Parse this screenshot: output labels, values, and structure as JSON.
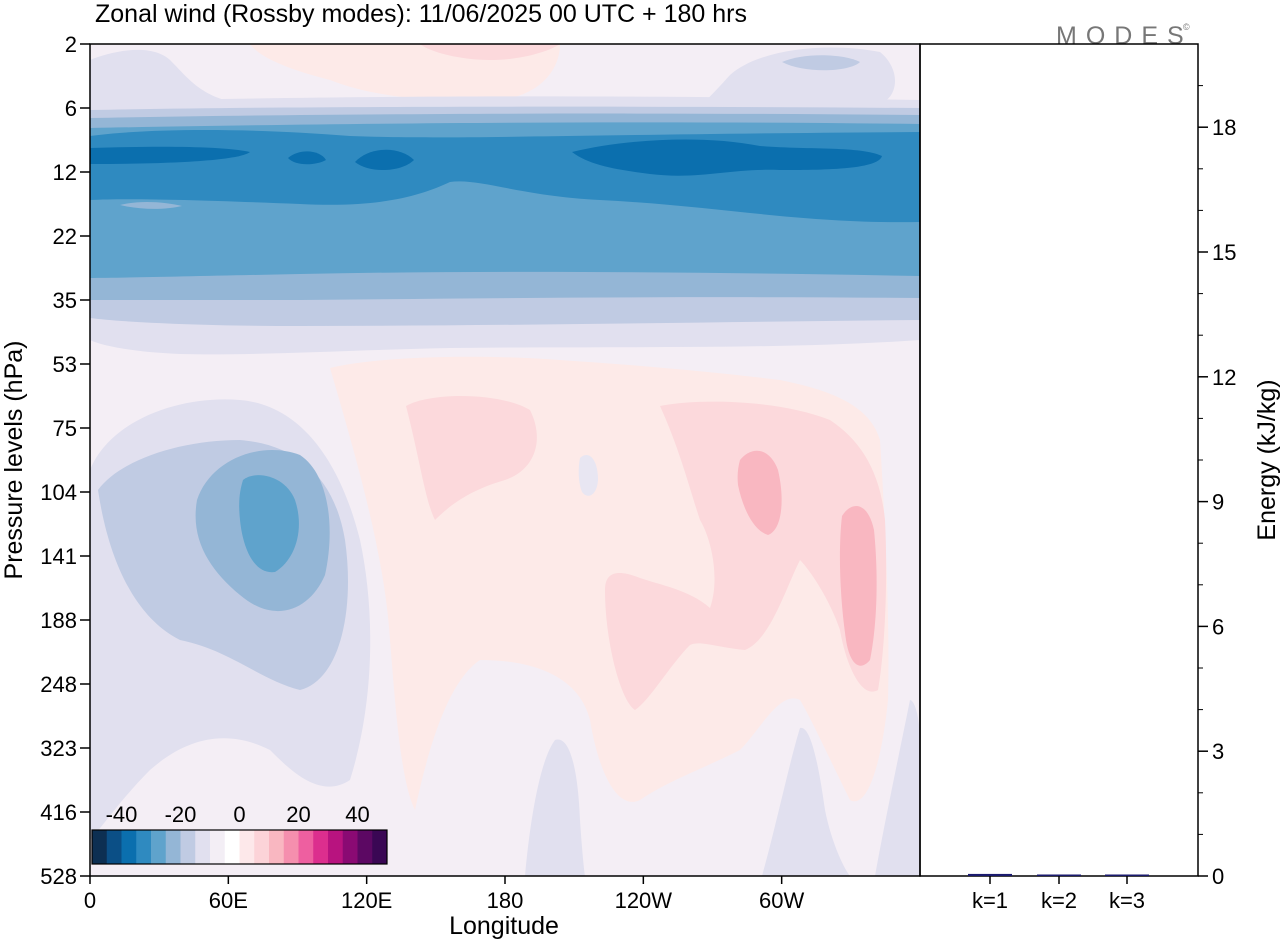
{
  "chart_data": [
    {
      "type": "heatmap",
      "title": "Zonal wind (Rossby modes):  11/06/2025  00 UTC  + 180 hrs",
      "xlabel": "Longitude",
      "ylabel": "Pressure levels (hPa)",
      "x_ticks": [
        "0",
        "60E",
        "120E",
        "180",
        "120W",
        "60W"
      ],
      "y_ticks": [
        "2",
        "6",
        "12",
        "22",
        "35",
        "53",
        "75",
        "104",
        "141",
        "188",
        "248",
        "323",
        "416",
        "528"
      ],
      "y_scale": "log (top = low pressure)",
      "colorbar": {
        "ticks": [
          "-40",
          "-20",
          "0",
          "20",
          "40"
        ],
        "range": [
          -50,
          50
        ],
        "colors": [
          "#0d2f52",
          "#0b4f86",
          "#0b6fae",
          "#2f8ac0",
          "#5fa3cc",
          "#94b6d6",
          "#c0cbe3",
          "#e1e0ef",
          "#f3eef5",
          "#ffffff",
          "#fde8ea",
          "#fcd3d8",
          "#f9b7c1",
          "#f58fae",
          "#ee5fa0",
          "#dc2e8e",
          "#b8137f",
          "#8a0a73",
          "#5c0863",
          "#3a0754"
        ]
      },
      "features": [
        {
          "label": "easterly jet band",
          "lon_range": [
            0,
            360
          ],
          "p_range": [
            6,
            40
          ],
          "peak_value": -30
        },
        {
          "label": "easterly core",
          "lon": 75,
          "p": 130,
          "peak_value": -25
        },
        {
          "label": "westerly core",
          "lon": 285,
          "p": 110,
          "peak_value": 12
        },
        {
          "label": "westerly core",
          "lon": 330,
          "p": 180,
          "peak_value": 12
        },
        {
          "label": "westerly cap",
          "lon": 180,
          "p": 2,
          "peak_value": 8
        }
      ]
    },
    {
      "type": "bar",
      "categories": [
        "k=1",
        "k=2",
        "k=3"
      ],
      "values": [
        0.05,
        0.03,
        0.01
      ],
      "ylabel": "Energy (kJ/kg)",
      "y_ticks": [
        "0",
        "3",
        "6",
        "9",
        "12",
        "15",
        "18"
      ],
      "ylim": [
        0,
        20
      ],
      "bar_color": "#1a1a6e"
    }
  ],
  "branding": {
    "logo_text": "MODES",
    "logo_mark": "©"
  }
}
